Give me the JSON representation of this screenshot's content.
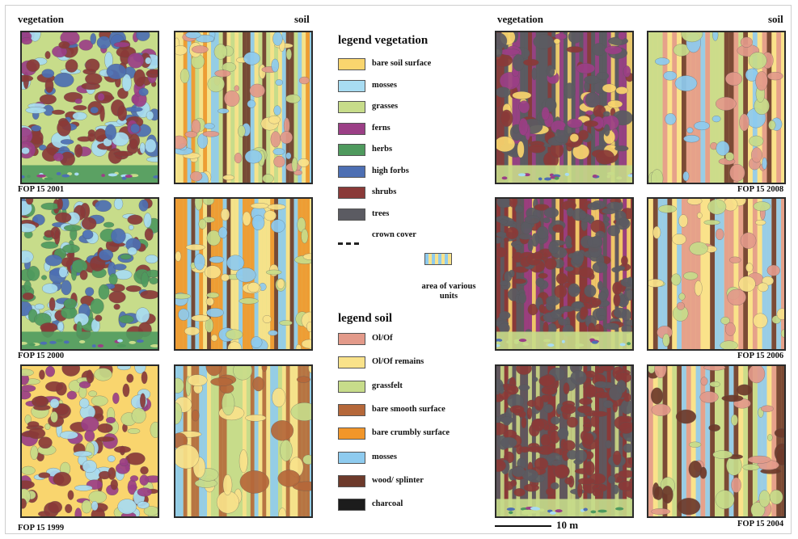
{
  "headers": {
    "vegetation_left": "vegetation",
    "soil_left": "soil",
    "vegetation_right": "vegetation",
    "soil_right": "soil"
  },
  "captions": {
    "fop2001": "FOP 15 2001",
    "fop2000": "FOP 15 2000",
    "fop1999": "FOP 15 1999",
    "fop2008": "FOP 15 2008",
    "fop2006": "FOP 15 2006",
    "fop2004": "FOP 15 2004"
  },
  "legend_vegetation": {
    "title": "legend vegetation",
    "items": [
      {
        "label": "bare soil surface",
        "color": "#f9d56e"
      },
      {
        "label": "mosses",
        "color": "#a8dcf2"
      },
      {
        "label": "grasses",
        "color": "#c7dc8a"
      },
      {
        "label": "ferns",
        "color": "#9b3f86"
      },
      {
        "label": "herbs",
        "color": "#4f9a5e"
      },
      {
        "label": "high forbs",
        "color": "#4d6fb3"
      },
      {
        "label": "shrubs",
        "color": "#8a3a38"
      },
      {
        "label": "trees",
        "color": "#5b5b62"
      }
    ],
    "crown_cover": "crown cover",
    "various_units": "area of various units"
  },
  "legend_soil": {
    "title": "legend soil",
    "items": [
      {
        "label": "Ol/Of",
        "color": "#e39a8a"
      },
      {
        "label": "Ol/Of remains",
        "color": "#f9e28a"
      },
      {
        "label": "grassfelt",
        "color": "#c7dc8a"
      },
      {
        "label": "bare smooth surface",
        "color": "#b5683a"
      },
      {
        "label": "bare crumbly surface",
        "color": "#f2962a"
      },
      {
        "label": "mosses",
        "color": "#8ecbef"
      },
      {
        "label": "wood/ splinter",
        "color": "#6d3a2b"
      },
      {
        "label": "charcoal",
        "color": "#1c1c1c"
      }
    ]
  },
  "scale": {
    "label": "10 m"
  }
}
